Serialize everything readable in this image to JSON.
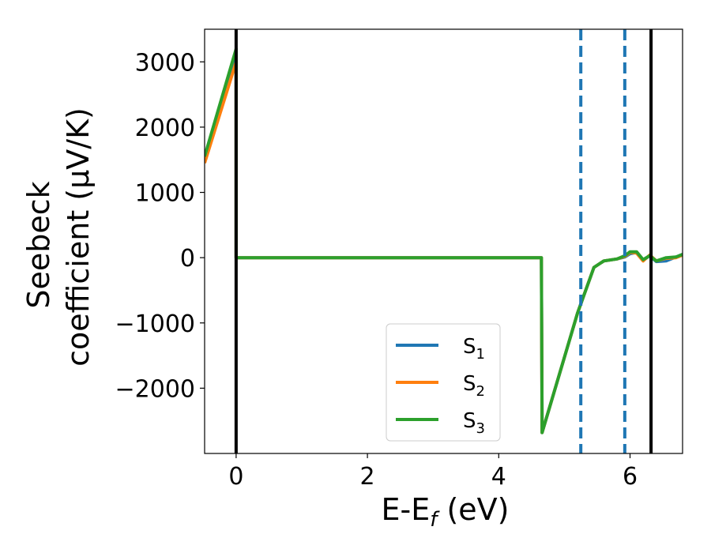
{
  "chart_data": {
    "type": "line",
    "xlabel_main": "E-E",
    "xlabel_sub": "f",
    "xlabel_unit": " (eV)",
    "ylabel_line1": "Seebeck",
    "ylabel_line2": "coefficient  (μV/K)",
    "xlim": [
      -0.48,
      6.8
    ],
    "ylim": [
      -3000,
      3500
    ],
    "xticks": [
      {
        "v": 0,
        "label": "0"
      },
      {
        "v": 2,
        "label": "2"
      },
      {
        "v": 4,
        "label": "4"
      },
      {
        "v": 6,
        "label": "6"
      }
    ],
    "yticks": [
      {
        "v": 3000,
        "label": "3000"
      },
      {
        "v": 2000,
        "label": "2000"
      },
      {
        "v": 1000,
        "label": "1000"
      },
      {
        "v": 0,
        "label": "0"
      },
      {
        "v": -1000,
        "label": "−1000"
      },
      {
        "v": -2000,
        "label": "−2000"
      }
    ],
    "vlines": [
      {
        "x": 0.0,
        "style": "solid",
        "color": "#000000"
      },
      {
        "x": 6.32,
        "style": "solid",
        "color": "#000000"
      },
      {
        "x": 5.25,
        "style": "dashed",
        "color": "#1f77b4"
      },
      {
        "x": 5.92,
        "style": "dashed",
        "color": "#1f77b4"
      }
    ],
    "legend_placement": "lower-center",
    "series": [
      {
        "name": "S",
        "sub": "1",
        "color": "#1f77b4",
        "points": [
          [
            -0.48,
            1500
          ],
          [
            0.0,
            3150
          ],
          [
            0.0,
            0
          ],
          [
            4.65,
            0
          ],
          [
            4.66,
            -2680
          ],
          [
            5.2,
            -850
          ],
          [
            5.45,
            -150
          ],
          [
            5.6,
            -50
          ],
          [
            5.8,
            -20
          ],
          [
            5.92,
            10
          ],
          [
            6.0,
            60
          ],
          [
            6.1,
            80
          ],
          [
            6.2,
            -40
          ],
          [
            6.3,
            30
          ],
          [
            6.4,
            -60
          ],
          [
            6.55,
            -50
          ],
          [
            6.7,
            10
          ],
          [
            6.8,
            50
          ]
        ]
      },
      {
        "name": "S",
        "sub": "2",
        "color": "#ff7f0e",
        "points": [
          [
            -0.48,
            1450
          ],
          [
            0.0,
            3000
          ],
          [
            0.0,
            0
          ],
          [
            4.65,
            0
          ],
          [
            4.66,
            -2680
          ],
          [
            5.2,
            -850
          ],
          [
            5.45,
            -150
          ],
          [
            5.6,
            -50
          ],
          [
            5.8,
            -20
          ],
          [
            5.92,
            20
          ],
          [
            6.0,
            80
          ],
          [
            6.1,
            70
          ],
          [
            6.2,
            -50
          ],
          [
            6.3,
            40
          ],
          [
            6.4,
            -50
          ],
          [
            6.55,
            -10
          ],
          [
            6.7,
            0
          ],
          [
            6.8,
            40
          ]
        ]
      },
      {
        "name": "S",
        "sub": "3",
        "color": "#2ca02c",
        "points": [
          [
            -0.48,
            1550
          ],
          [
            0.0,
            3200
          ],
          [
            0.0,
            0
          ],
          [
            4.65,
            0
          ],
          [
            4.66,
            -2680
          ],
          [
            5.2,
            -850
          ],
          [
            5.45,
            -150
          ],
          [
            5.6,
            -50
          ],
          [
            5.8,
            -20
          ],
          [
            5.92,
            30
          ],
          [
            6.0,
            90
          ],
          [
            6.1,
            90
          ],
          [
            6.2,
            -30
          ],
          [
            6.3,
            30
          ],
          [
            6.4,
            -50
          ],
          [
            6.55,
            0
          ],
          [
            6.7,
            10
          ],
          [
            6.8,
            50
          ]
        ]
      }
    ]
  }
}
